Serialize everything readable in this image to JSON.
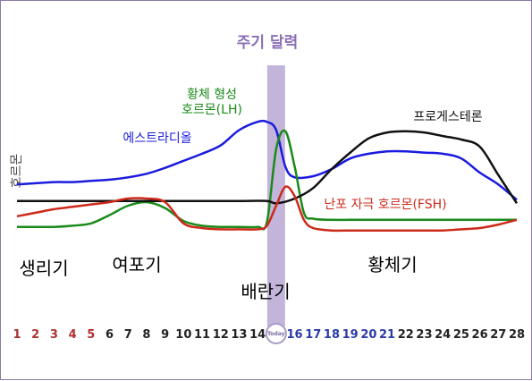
{
  "chart_data": {
    "type": "line",
    "title": "주기 달력",
    "ylabel": "호르몬",
    "xlim": [
      1,
      28
    ],
    "ylim": [
      0,
      100
    ],
    "grid": false,
    "ovulation_day": 15,
    "today_label": "Today",
    "day_labels": [
      {
        "day": 1,
        "text": "1",
        "color": "#b03030"
      },
      {
        "day": 2,
        "text": "2",
        "color": "#b03030"
      },
      {
        "day": 3,
        "text": "3",
        "color": "#b03030"
      },
      {
        "day": 4,
        "text": "4",
        "color": "#b03030"
      },
      {
        "day": 5,
        "text": "5",
        "color": "#b03030"
      },
      {
        "day": 6,
        "text": "6",
        "color": "#222222"
      },
      {
        "day": 7,
        "text": "7",
        "color": "#222222"
      },
      {
        "day": 8,
        "text": "8",
        "color": "#222222"
      },
      {
        "day": 9,
        "text": "9",
        "color": "#222222"
      },
      {
        "day": 10,
        "text": "10",
        "color": "#222222"
      },
      {
        "day": 11,
        "text": "11",
        "color": "#222222"
      },
      {
        "day": 12,
        "text": "12",
        "color": "#222222"
      },
      {
        "day": 13,
        "text": "13",
        "color": "#222222"
      },
      {
        "day": 14,
        "text": "14",
        "color": "#222222"
      },
      {
        "day": 16,
        "text": "16",
        "color": "#2a3aa8"
      },
      {
        "day": 17,
        "text": "17",
        "color": "#2a3aa8"
      },
      {
        "day": 18,
        "text": "18",
        "color": "#2a3aa8"
      },
      {
        "day": 19,
        "text": "19",
        "color": "#2a3aa8"
      },
      {
        "day": 20,
        "text": "20",
        "color": "#2a3aa8"
      },
      {
        "day": 21,
        "text": "21",
        "color": "#2a3aa8"
      },
      {
        "day": 22,
        "text": "22",
        "color": "#222222"
      },
      {
        "day": 23,
        "text": "23",
        "color": "#222222"
      },
      {
        "day": 24,
        "text": "24",
        "color": "#222222"
      },
      {
        "day": 25,
        "text": "25",
        "color": "#222222"
      },
      {
        "day": 26,
        "text": "26",
        "color": "#222222"
      },
      {
        "day": 27,
        "text": "27",
        "color": "#222222"
      },
      {
        "day": 28,
        "text": "28",
        "color": "#222222"
      }
    ],
    "phases": [
      {
        "name": "생리기",
        "color": "#b03040"
      },
      {
        "name": "여포기",
        "color": "#222222"
      },
      {
        "name": "배란기",
        "color": "#7a5fb0"
      },
      {
        "name": "황체기",
        "color": "#222222"
      }
    ],
    "series": [
      {
        "name": "에스트라디올",
        "color": "#1a1ae0",
        "points": [
          [
            1,
            40
          ],
          [
            2,
            41
          ],
          [
            3,
            42
          ],
          [
            4,
            42
          ],
          [
            5,
            43
          ],
          [
            6,
            44
          ],
          [
            7,
            46
          ],
          [
            8,
            49
          ],
          [
            9,
            54
          ],
          [
            10,
            60
          ],
          [
            11,
            66
          ],
          [
            12,
            73
          ],
          [
            13,
            86
          ],
          [
            14,
            93
          ],
          [
            14.5,
            93
          ],
          [
            15,
            86
          ],
          [
            15.5,
            55
          ],
          [
            16,
            46
          ],
          [
            17,
            47
          ],
          [
            18,
            53
          ],
          [
            19,
            62
          ],
          [
            20,
            66
          ],
          [
            21,
            68
          ],
          [
            22,
            68
          ],
          [
            23,
            67
          ],
          [
            24,
            66
          ],
          [
            25,
            62
          ],
          [
            26,
            50
          ],
          [
            27,
            40
          ],
          [
            28,
            27
          ]
        ]
      },
      {
        "name": "황체 형성 호르몬(LH)",
        "color": "#1a8a1a",
        "points": [
          [
            1,
            4
          ],
          [
            2,
            4
          ],
          [
            3,
            4
          ],
          [
            4,
            5
          ],
          [
            5,
            7
          ],
          [
            6,
            14
          ],
          [
            7,
            22
          ],
          [
            8,
            25
          ],
          [
            9,
            20
          ],
          [
            10,
            9
          ],
          [
            11,
            5
          ],
          [
            12,
            4
          ],
          [
            13,
            4
          ],
          [
            14,
            4
          ],
          [
            14.5,
            8
          ],
          [
            15,
            70
          ],
          [
            15.5,
            85
          ],
          [
            16,
            55
          ],
          [
            16.5,
            16
          ],
          [
            17,
            11
          ],
          [
            18,
            10
          ],
          [
            19,
            10
          ],
          [
            20,
            10
          ],
          [
            21,
            10
          ],
          [
            22,
            10
          ],
          [
            23,
            10
          ],
          [
            24,
            10
          ],
          [
            25,
            10
          ],
          [
            26,
            10
          ],
          [
            27,
            10
          ],
          [
            28,
            10
          ]
        ]
      },
      {
        "name": "프로게스테론",
        "color": "#111111",
        "points": [
          [
            1,
            26
          ],
          [
            3,
            26
          ],
          [
            5,
            26
          ],
          [
            7,
            26
          ],
          [
            9,
            26
          ],
          [
            11,
            26
          ],
          [
            13,
            26
          ],
          [
            14.5,
            26
          ],
          [
            15,
            24
          ],
          [
            16,
            28
          ],
          [
            17,
            37
          ],
          [
            18,
            53
          ],
          [
            19,
            67
          ],
          [
            20,
            79
          ],
          [
            21,
            84
          ],
          [
            22,
            85
          ],
          [
            23,
            84
          ],
          [
            24,
            81
          ],
          [
            25,
            78
          ],
          [
            26,
            72
          ],
          [
            27,
            48
          ],
          [
            28,
            24
          ]
        ]
      },
      {
        "name": "난포 자극 호르몬(FSH)",
        "color": "#cc2a1a",
        "points": [
          [
            1,
            13
          ],
          [
            2,
            16
          ],
          [
            3,
            19
          ],
          [
            4,
            21
          ],
          [
            5,
            23
          ],
          [
            6,
            25
          ],
          [
            7,
            28
          ],
          [
            8,
            28
          ],
          [
            9,
            25
          ],
          [
            10,
            7
          ],
          [
            11,
            3
          ],
          [
            12,
            2
          ],
          [
            13,
            2
          ],
          [
            14,
            2
          ],
          [
            14.5,
            5
          ],
          [
            15,
            22
          ],
          [
            15.5,
            38
          ],
          [
            16,
            30
          ],
          [
            16.5,
            10
          ],
          [
            17,
            3
          ],
          [
            18,
            1
          ],
          [
            19,
            1
          ],
          [
            20,
            1
          ],
          [
            21,
            1
          ],
          [
            22,
            1
          ],
          [
            23,
            1
          ],
          [
            24,
            1
          ],
          [
            25,
            2
          ],
          [
            26,
            3
          ],
          [
            27,
            6
          ],
          [
            28,
            10
          ]
        ]
      }
    ]
  }
}
